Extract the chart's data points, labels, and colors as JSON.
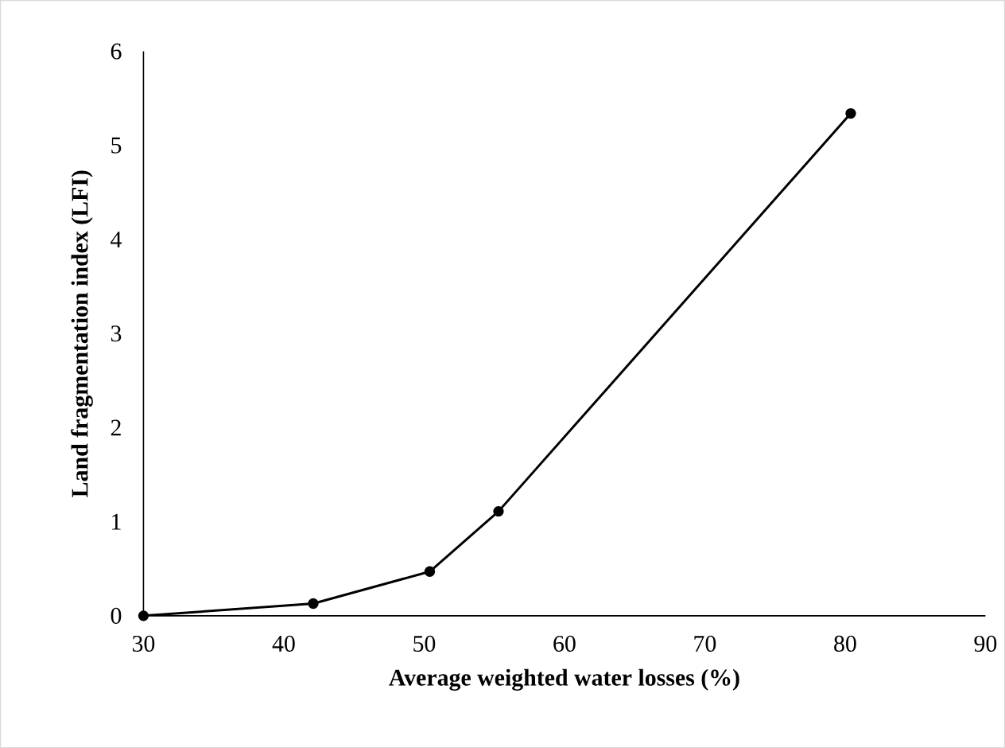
{
  "chart_data": {
    "type": "line",
    "xlabel": "Average weighted water losses (%)",
    "ylabel": "Land fragmentation index (LFI)",
    "x": [
      30,
      42.1,
      50.4,
      55.3,
      80.4
    ],
    "series": [
      {
        "color": "#000000",
        "values": [
          0,
          0.13,
          0.47,
          1.11,
          5.34
        ]
      }
    ],
    "xlim": [
      30,
      90
    ],
    "xticks": [
      30,
      40,
      50,
      60,
      70,
      80,
      90
    ],
    "ylim": [
      0,
      6
    ],
    "yticks": [
      0,
      1,
      2,
      3,
      4,
      5,
      6
    ],
    "grid": false,
    "marker": "circle",
    "line_style": "solid"
  }
}
